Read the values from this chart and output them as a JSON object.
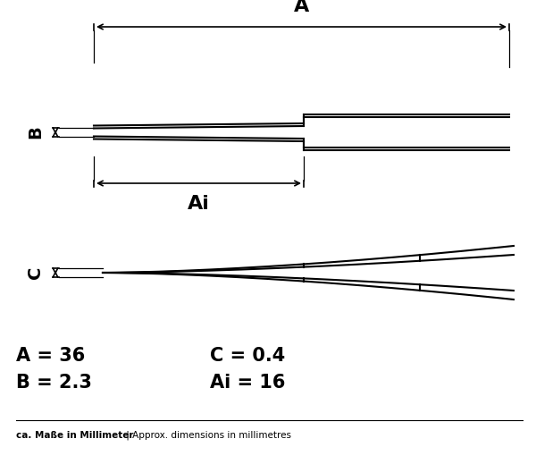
{
  "bg_color": "#ffffff",
  "line_color": "#000000",
  "fig_width": 6.0,
  "fig_height": 5.19,
  "A_label": "A",
  "B_label": "B",
  "C_label": "C",
  "Ai_label": "Ai",
  "dim_A": "A = 36",
  "dim_B": "B = 2.3",
  "dim_C": "C = 0.4",
  "dim_Ai": "Ai = 16",
  "footer_bold": "ca. Maße in Millimeter",
  "footer_normal": " | Approx. dimensions in millimetres"
}
